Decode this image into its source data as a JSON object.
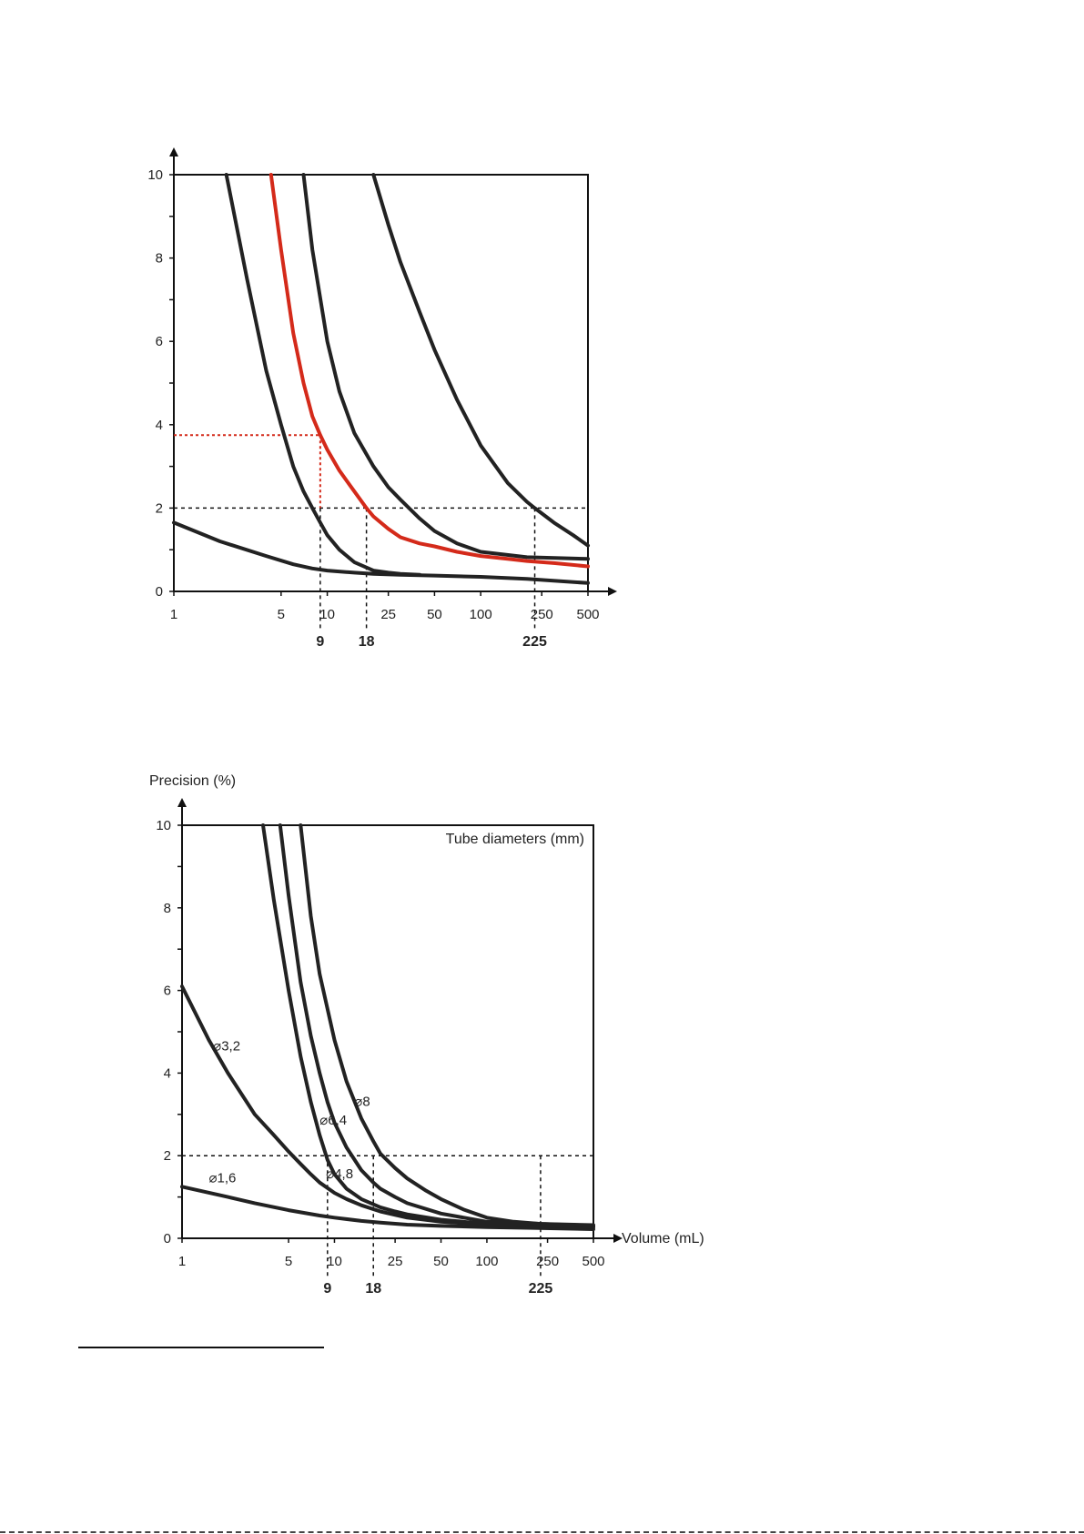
{
  "chart_data": [
    {
      "type": "line",
      "title": "",
      "xlabel": "",
      "ylabel": "",
      "x_scale": "log",
      "xlim": [
        1,
        500
      ],
      "ylim": [
        0,
        10
      ],
      "x_ticks": [
        1,
        5,
        10,
        25,
        50,
        100,
        250,
        500
      ],
      "x_tick_labels": [
        "1",
        "5",
        "10",
        "25",
        "50",
        "100",
        "250",
        "500"
      ],
      "y_ticks": [
        0,
        2,
        4,
        6,
        8,
        10
      ],
      "y_tick_labels": [
        "0",
        "2",
        "4",
        "6",
        "8",
        "10"
      ],
      "marked_x": [
        9,
        18,
        225
      ],
      "marked_x_labels": [
        "9",
        "18",
        "225"
      ],
      "reference_y": 2,
      "highlight": {
        "x": 9,
        "y": 3.75,
        "color": "#d42a1a"
      },
      "grid": false,
      "series": [
        {
          "color": "#222222",
          "x": [
            1,
            2,
            4,
            6,
            8,
            10,
            15,
            20,
            30,
            50,
            100,
            200,
            500
          ],
          "y": [
            1.65,
            1.2,
            0.85,
            0.65,
            0.55,
            0.5,
            0.45,
            0.42,
            0.4,
            0.38,
            0.35,
            0.3,
            0.2
          ]
        },
        {
          "color": "#222222",
          "x": [
            2.2,
            3,
            4,
            5,
            6,
            7,
            8,
            9,
            10,
            12,
            15,
            20,
            25,
            30,
            40
          ],
          "y": [
            10,
            7.5,
            5.3,
            4.0,
            3.0,
            2.4,
            2.0,
            1.65,
            1.35,
            1.0,
            0.7,
            0.5,
            0.45,
            0.42,
            0.4
          ]
        },
        {
          "color": "#d42a1a",
          "x": [
            4.3,
            5,
            6,
            7,
            8,
            9,
            10,
            12,
            15,
            18,
            20,
            25,
            30,
            40,
            50,
            70,
            100,
            150,
            200,
            300,
            500
          ],
          "y": [
            10,
            8.2,
            6.2,
            5.0,
            4.2,
            3.75,
            3.4,
            2.9,
            2.4,
            2.0,
            1.8,
            1.5,
            1.3,
            1.15,
            1.08,
            0.95,
            0.85,
            0.78,
            0.73,
            0.68,
            0.6
          ]
        },
        {
          "color": "#222222",
          "x": [
            7,
            8,
            10,
            12,
            15,
            20,
            25,
            30,
            40,
            50,
            70,
            100,
            200,
            500
          ],
          "y": [
            10,
            8.2,
            6.0,
            4.8,
            3.8,
            3.0,
            2.5,
            2.2,
            1.75,
            1.45,
            1.15,
            0.95,
            0.82,
            0.78
          ]
        },
        {
          "color": "#222222",
          "x": [
            20,
            25,
            30,
            40,
            50,
            70,
            100,
            150,
            200,
            225,
            300,
            400,
            500
          ],
          "y": [
            10,
            8.8,
            7.9,
            6.7,
            5.8,
            4.6,
            3.5,
            2.6,
            2.15,
            2.0,
            1.65,
            1.35,
            1.1
          ]
        }
      ]
    },
    {
      "type": "line",
      "title": "",
      "xlabel": "Volume (mL)",
      "ylabel": "Precision (%)",
      "legend_title": "Tube diameters (mm)",
      "legend_position": "top-right",
      "x_scale": "log",
      "xlim": [
        1,
        500
      ],
      "ylim": [
        0,
        10
      ],
      "x_ticks": [
        1,
        5,
        10,
        25,
        50,
        100,
        250,
        500
      ],
      "x_tick_labels": [
        "1",
        "5",
        "10",
        "25",
        "50",
        "100",
        "250",
        "500"
      ],
      "y_ticks": [
        0,
        2,
        4,
        6,
        8,
        10
      ],
      "y_tick_labels": [
        "0",
        "2",
        "4",
        "6",
        "8",
        "10"
      ],
      "marked_x": [
        9,
        18,
        225
      ],
      "marked_x_labels": [
        "9",
        "18",
        "225"
      ],
      "reference_y": 2,
      "grid": false,
      "series": [
        {
          "name": "⌀1,6",
          "color": "#222222",
          "x": [
            1,
            2,
            3,
            5,
            8,
            10,
            15,
            20,
            30,
            50,
            100,
            200,
            500
          ],
          "y": [
            1.25,
            1.0,
            0.85,
            0.68,
            0.55,
            0.5,
            0.42,
            0.38,
            0.33,
            0.3,
            0.27,
            0.25,
            0.22
          ]
        },
        {
          "name": "⌀3,2",
          "color": "#222222",
          "x": [
            1,
            1.5,
            2,
            3,
            4,
            5,
            6,
            7,
            8,
            10,
            12,
            15,
            20,
            30,
            50,
            100,
            500
          ],
          "y": [
            6.1,
            4.8,
            4.0,
            3.0,
            2.5,
            2.1,
            1.8,
            1.55,
            1.35,
            1.1,
            0.95,
            0.8,
            0.65,
            0.5,
            0.4,
            0.33,
            0.27
          ]
        },
        {
          "name": "⌀4,8",
          "color": "#222222",
          "x": [
            3.4,
            4,
            5,
            6,
            7,
            8,
            9,
            10,
            12,
            15,
            20,
            25,
            30,
            50,
            100,
            500
          ],
          "y": [
            10,
            8.2,
            6.0,
            4.4,
            3.3,
            2.5,
            1.9,
            1.55,
            1.2,
            0.95,
            0.75,
            0.65,
            0.58,
            0.45,
            0.35,
            0.28
          ]
        },
        {
          "name": "⌀6,4",
          "color": "#222222",
          "x": [
            4.4,
            5,
            6,
            7,
            8,
            9,
            10,
            12,
            15,
            18,
            20,
            25,
            30,
            50,
            100,
            500
          ],
          "y": [
            10,
            8.3,
            6.2,
            4.9,
            4.0,
            3.3,
            2.8,
            2.2,
            1.65,
            1.35,
            1.2,
            1.0,
            0.85,
            0.6,
            0.4,
            0.3
          ]
        },
        {
          "name": "⌀8",
          "color": "#222222",
          "x": [
            6,
            7,
            8,
            10,
            12,
            15,
            18,
            20,
            25,
            30,
            40,
            50,
            70,
            100,
            150,
            225,
            500
          ],
          "y": [
            10,
            7.8,
            6.4,
            4.8,
            3.8,
            2.9,
            2.35,
            2.05,
            1.7,
            1.45,
            1.15,
            0.95,
            0.7,
            0.5,
            0.4,
            0.35,
            0.32
          ]
        }
      ]
    }
  ]
}
